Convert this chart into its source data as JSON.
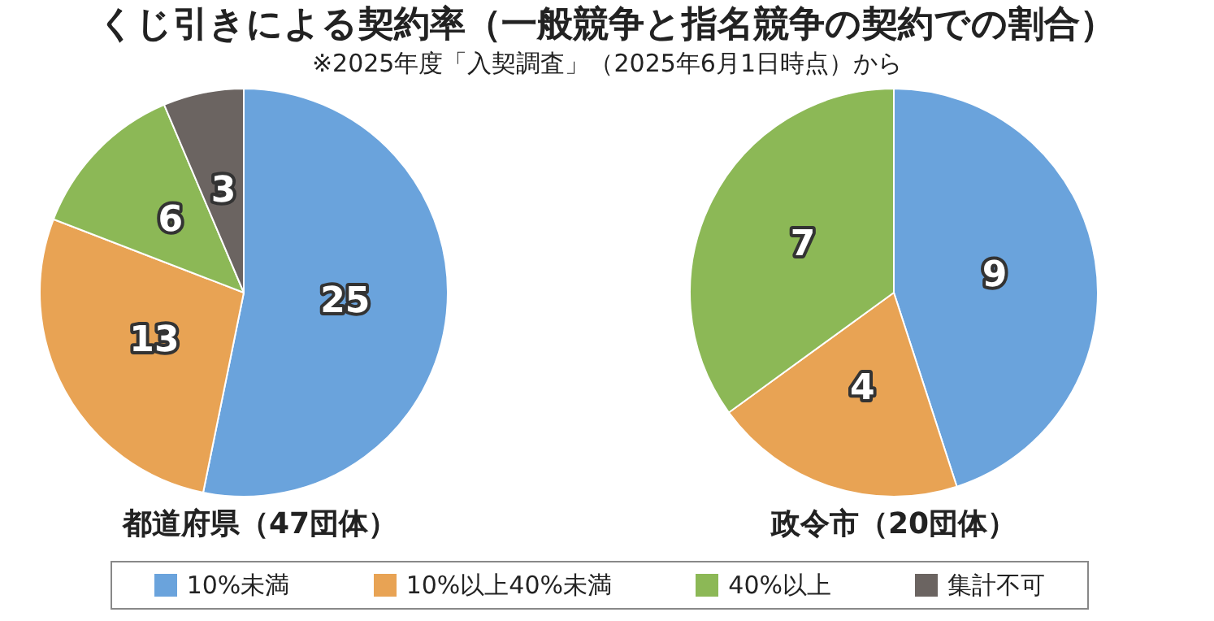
{
  "chart_data": [
    {
      "type": "pie",
      "title": "くじ引きによる契約率（一般競争と指名競争の契約での割合）",
      "subtitle": "※2025年度「入契調査」（2025年6月1日時点）から",
      "xlabel": "都道府県（47団体）",
      "categories": [
        "10%未満",
        "10%以上40%未満",
        "40%以上",
        "集計不可"
      ],
      "values": [
        25,
        13,
        6,
        3
      ],
      "colors": [
        "#6aa3dc",
        "#e8a354",
        "#8cb856",
        "#6b6461"
      ],
      "data_labels": true,
      "legend": "bottom"
    },
    {
      "type": "pie",
      "xlabel": "政令市（20団体）",
      "categories": [
        null,
        null,
        null
      ],
      "values": [
        9,
        4,
        7
      ],
      "colors": [
        "#6aa3dc",
        "#e8a354",
        "#8cb856"
      ],
      "data_labels": true
    }
  ]
}
